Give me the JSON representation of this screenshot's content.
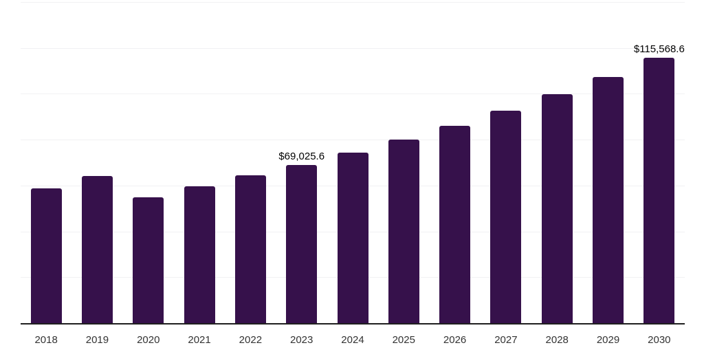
{
  "chart_data": {
    "type": "bar",
    "title": "",
    "xlabel": "",
    "ylabel": "",
    "categories": [
      "2018",
      "2019",
      "2020",
      "2021",
      "2022",
      "2023",
      "2024",
      "2025",
      "2026",
      "2027",
      "2028",
      "2029",
      "2030"
    ],
    "values": [
      58900,
      64200,
      55000,
      59700,
      64500,
      69025.6,
      74300,
      80000,
      86100,
      92700,
      99800,
      107400,
      115568.6
    ],
    "data_labels": {
      "2023": "$69,025.6",
      "2030": "$115,568.6"
    },
    "ylim": [
      0,
      140000
    ],
    "gridline_interval": 20000,
    "grid": true,
    "legend": false,
    "y_axis_tick_labels_visible": false,
    "bar_color": "#36114B",
    "axis_line_color": "#1f1f1f",
    "gridline_color": "#f1f1f3",
    "tick_label_color": "#333333",
    "data_label_color": "#000000",
    "background_color": "#ffffff"
  }
}
